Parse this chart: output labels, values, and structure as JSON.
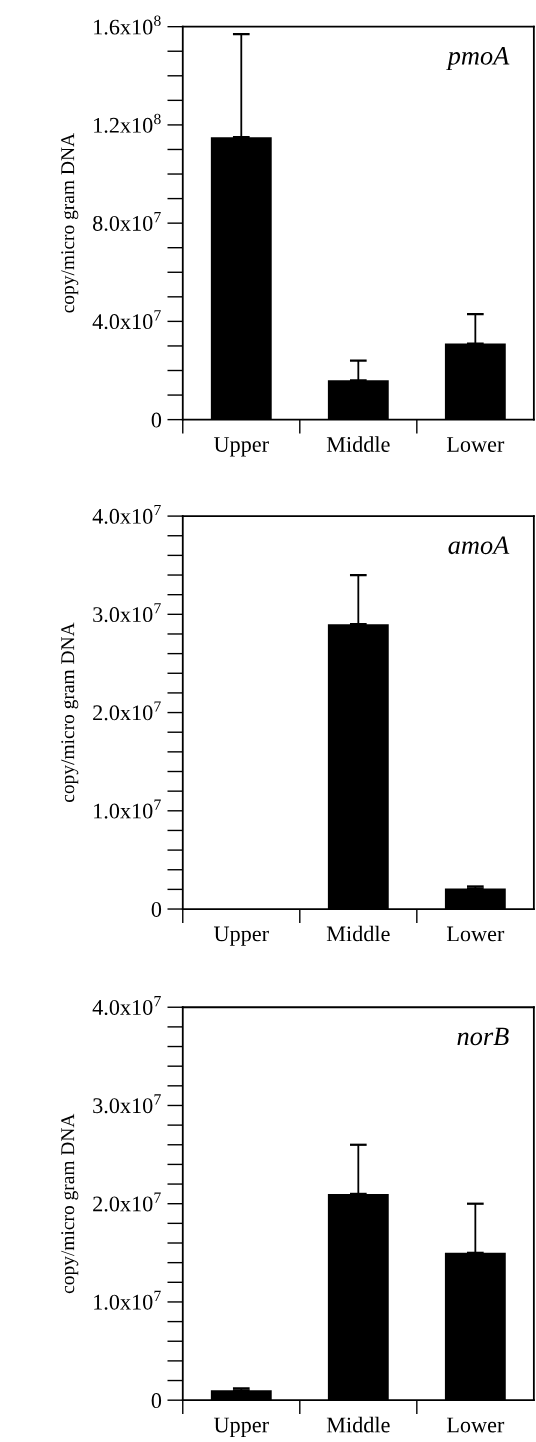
{
  "chart_data": [
    {
      "type": "bar",
      "title": "pmoA",
      "ylabel": "copy/micro gram DNA",
      "categories": [
        "Upper",
        "Middle",
        "Lower"
      ],
      "values": [
        115000000,
        16000000,
        31000000
      ],
      "errors": [
        [
          115000000,
          157000000
        ],
        [
          16000000,
          24000000
        ],
        [
          31000000,
          43000000
        ]
      ],
      "color": "#000000",
      "ylim": [
        0,
        160000000
      ],
      "yticks": [
        {
          "value": 0,
          "label": "0"
        },
        {
          "value": 10000000,
          "label": null
        },
        {
          "value": 20000000,
          "label": null
        },
        {
          "value": 30000000,
          "label": null
        },
        {
          "value": 40000000,
          "label": "4.0x10$^{7}$"
        },
        {
          "value": 50000000,
          "label": null
        },
        {
          "value": 60000000,
          "label": null
        },
        {
          "value": 70000000,
          "label": null
        },
        {
          "value": 80000000,
          "label": "8.0x10$^{7}$"
        },
        {
          "value": 90000000,
          "label": null
        },
        {
          "value": 100000000,
          "label": null
        },
        {
          "value": 110000000,
          "label": null
        },
        {
          "value": 120000000,
          "label": "1.2x10$^{8}$"
        },
        {
          "value": 130000000,
          "label": null
        },
        {
          "value": 140000000,
          "label": null
        },
        {
          "value": 150000000,
          "label": null
        },
        {
          "value": 160000000,
          "label": "1.6x10$^{8}$"
        }
      ],
      "grid": false,
      "legend": false
    },
    {
      "type": "bar",
      "title": "amoA",
      "ylabel": "copy/micro gram DNA",
      "categories": [
        "Upper",
        "Middle",
        "Lower"
      ],
      "values": [
        0,
        29000000,
        2100000
      ],
      "errors": [
        null,
        [
          29000000,
          34000000
        ],
        [
          2100000,
          2300000
        ]
      ],
      "color": "#000000",
      "ylim": [
        0,
        40000000
      ],
      "yticks": [
        {
          "value": 0,
          "label": "0"
        },
        {
          "value": 2000000,
          "label": null
        },
        {
          "value": 4000000,
          "label": null
        },
        {
          "value": 6000000,
          "label": null
        },
        {
          "value": 8000000,
          "label": null
        },
        {
          "value": 10000000,
          "label": "1.0x10$^{7}$"
        },
        {
          "value": 12000000,
          "label": null
        },
        {
          "value": 14000000,
          "label": null
        },
        {
          "value": 16000000,
          "label": null
        },
        {
          "value": 18000000,
          "label": null
        },
        {
          "value": 20000000,
          "label": "2.0x10$^{7}$"
        },
        {
          "value": 22000000,
          "label": null
        },
        {
          "value": 24000000,
          "label": null
        },
        {
          "value": 26000000,
          "label": null
        },
        {
          "value": 28000000,
          "label": null
        },
        {
          "value": 30000000,
          "label": "3.0x10$^{7}$"
        },
        {
          "value": 32000000,
          "label": null
        },
        {
          "value": 34000000,
          "label": null
        },
        {
          "value": 36000000,
          "label": null
        },
        {
          "value": 38000000,
          "label": null
        },
        {
          "value": 40000000,
          "label": "4.0x10$^{7}$"
        }
      ],
      "grid": false,
      "legend": false
    },
    {
      "type": "bar",
      "title": "norB",
      "ylabel": "copy/micro gram DNA",
      "categories": [
        "Upper",
        "Middle",
        "Lower"
      ],
      "values": [
        1000000,
        21000000,
        15000000
      ],
      "errors": [
        [
          1000000,
          1200000
        ],
        [
          21000000,
          26000000
        ],
        [
          15000000,
          20000000
        ]
      ],
      "color": "#000000",
      "ylim": [
        0,
        40000000
      ],
      "yticks": [
        {
          "value": 0,
          "label": "0"
        },
        {
          "value": 2000000,
          "label": null
        },
        {
          "value": 4000000,
          "label": null
        },
        {
          "value": 6000000,
          "label": null
        },
        {
          "value": 8000000,
          "label": null
        },
        {
          "value": 10000000,
          "label": "1.0x10$^{7}$"
        },
        {
          "value": 12000000,
          "label": null
        },
        {
          "value": 14000000,
          "label": null
        },
        {
          "value": 16000000,
          "label": null
        },
        {
          "value": 18000000,
          "label": null
        },
        {
          "value": 20000000,
          "label": "2.0x10$^{7}$"
        },
        {
          "value": 22000000,
          "label": null
        },
        {
          "value": 24000000,
          "label": null
        },
        {
          "value": 26000000,
          "label": null
        },
        {
          "value": 28000000,
          "label": null
        },
        {
          "value": 30000000,
          "label": "3.0x10$^{7}$"
        },
        {
          "value": 32000000,
          "label": null
        },
        {
          "value": 34000000,
          "label": null
        },
        {
          "value": 36000000,
          "label": null
        },
        {
          "value": 38000000,
          "label": null
        },
        {
          "value": 40000000,
          "label": "4.0x10$^{7}$"
        }
      ],
      "grid": false,
      "legend": false
    }
  ]
}
